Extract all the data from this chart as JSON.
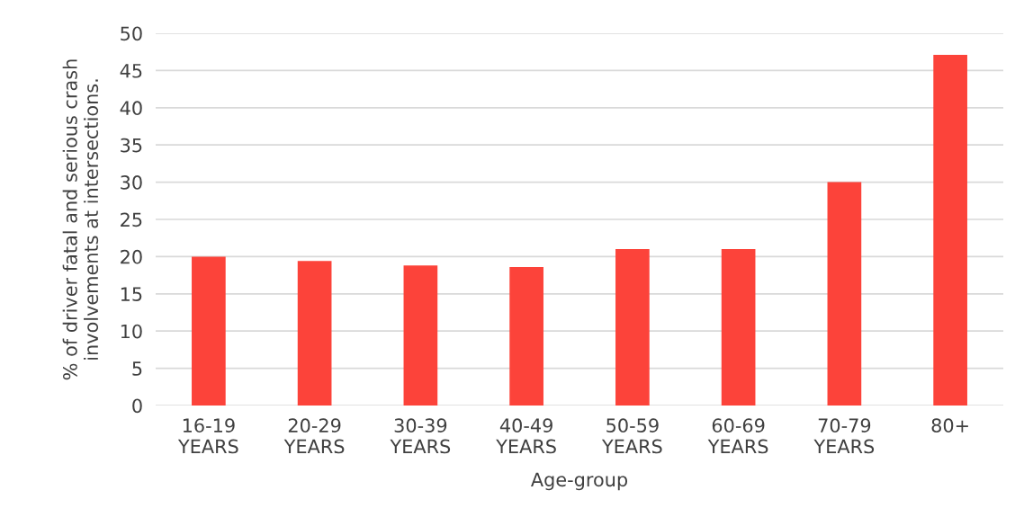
{
  "chart_data": {
    "type": "bar",
    "xlabel": "Age-group",
    "ylabel": "% of driver fatal and serious crash\ninvolvements at intersections.",
    "categories": [
      "16-19\nYEARS",
      "20-29\nYEARS",
      "30-39\nYEARS",
      "40-49\nYEARS",
      "50-59\nYEARS",
      "60-69\nYEARS",
      "70-79\nYEARS",
      "80+"
    ],
    "values": [
      20,
      19.4,
      18.8,
      18.6,
      21,
      21,
      30,
      47.1
    ],
    "color": "#fc433a",
    "ylim": [
      0,
      50
    ],
    "yticks": [
      0,
      5,
      10,
      15,
      20,
      25,
      30,
      35,
      40,
      45,
      50
    ],
    "grid": "y",
    "legend": false
  }
}
